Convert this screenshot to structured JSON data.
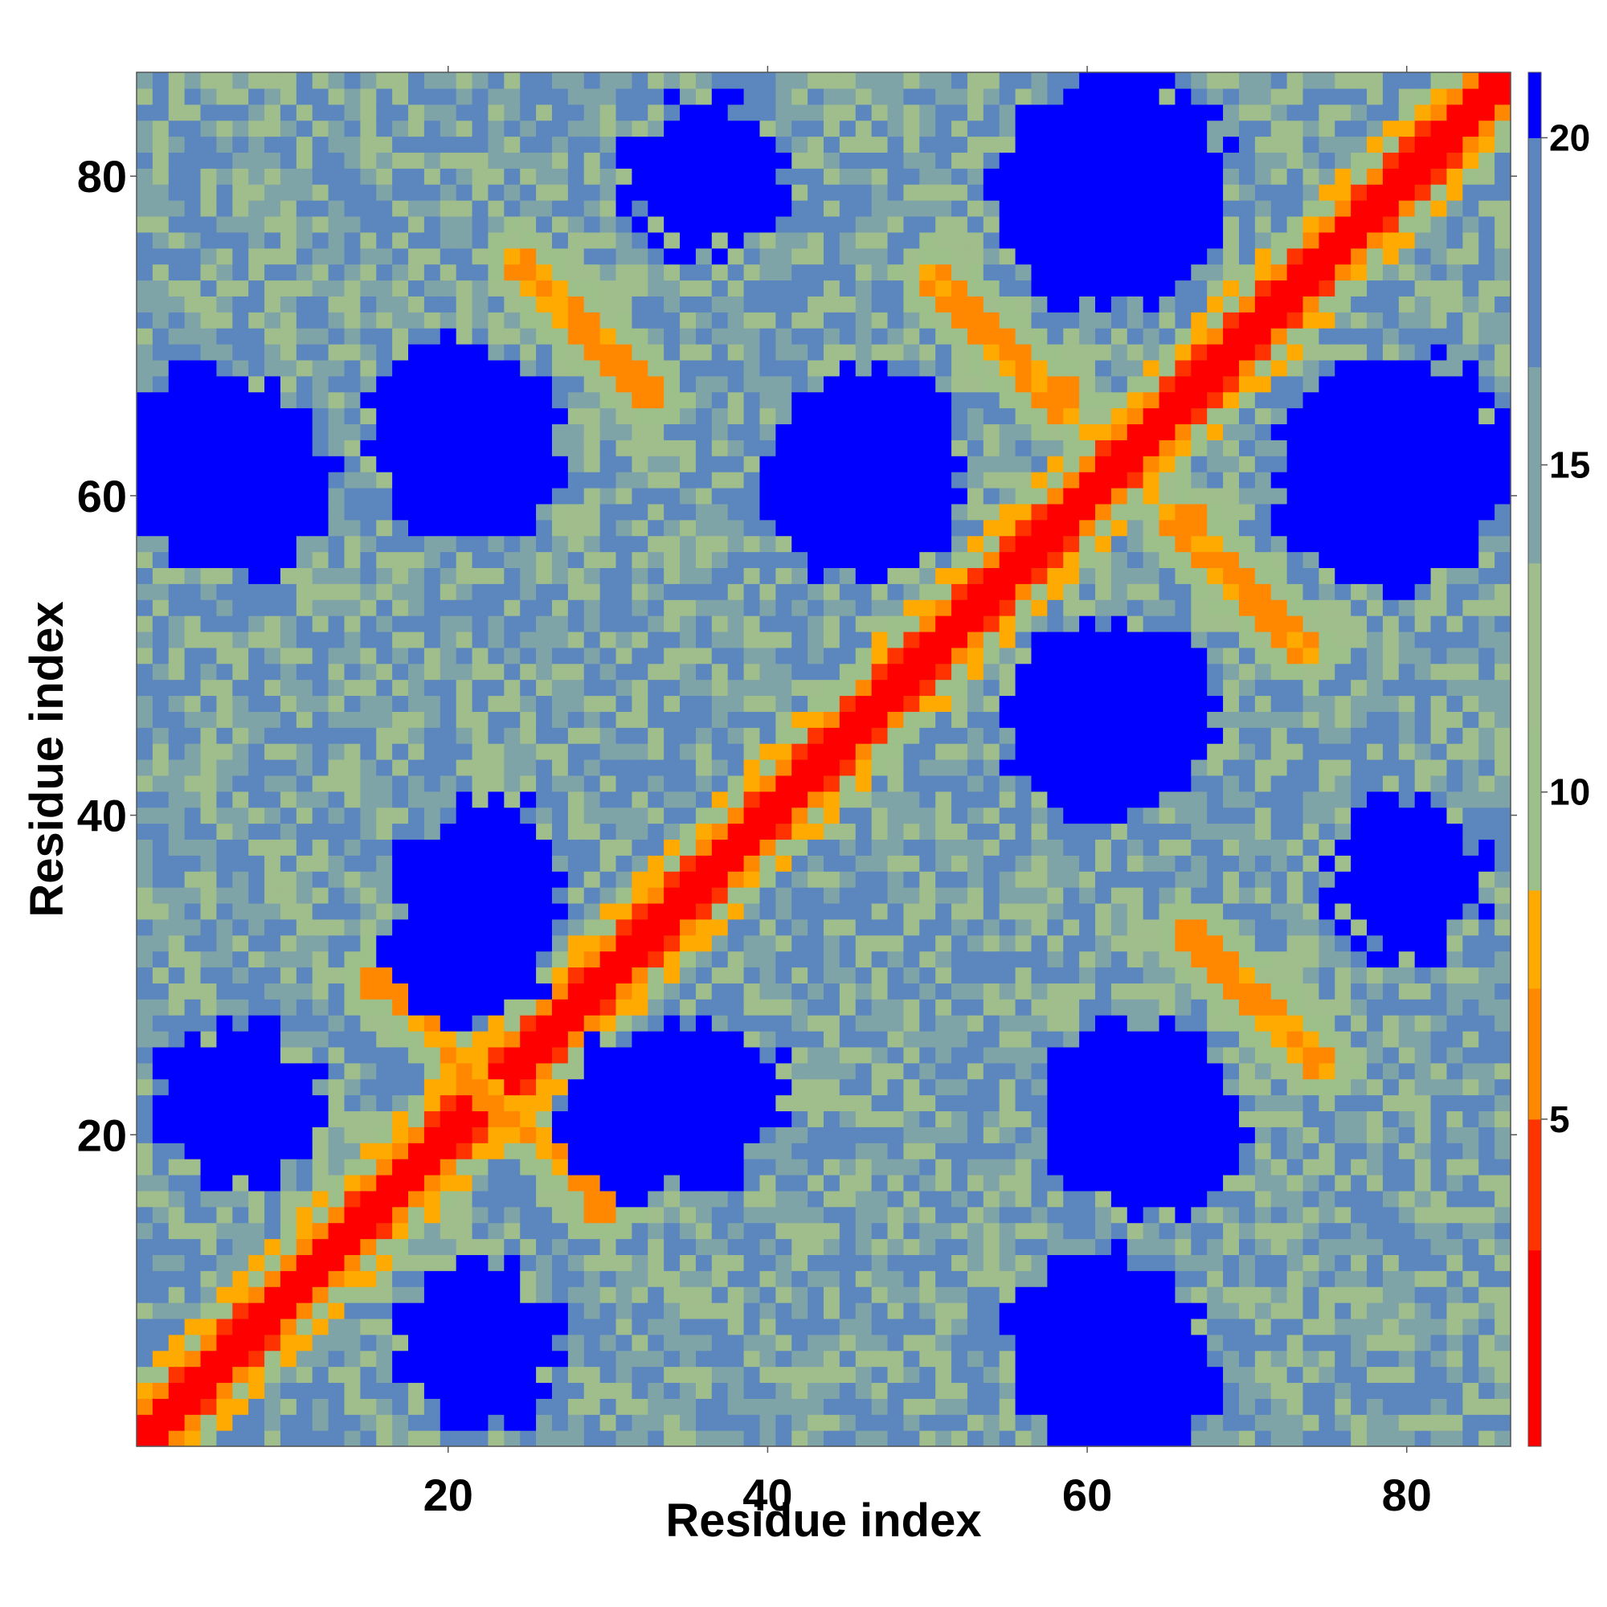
{
  "chart_data": {
    "type": "heatmap",
    "title": "",
    "xlabel": "Residue index",
    "ylabel": "Residue index",
    "xlim": [
      1,
      86
    ],
    "ylim": [
      1,
      86
    ],
    "x_ticks": [
      20,
      40,
      60,
      80
    ],
    "y_ticks": [
      20,
      40,
      60,
      80
    ],
    "matrix_size": 86,
    "matrix_symmetric": true,
    "colorbar": {
      "range": [
        0,
        21
      ],
      "ticks": [
        5,
        10,
        15,
        20
      ],
      "colors": [
        {
          "from": 0,
          "to": 3,
          "color": "#ff0000"
        },
        {
          "from": 3,
          "to": 5,
          "color": "#ff3300"
        },
        {
          "from": 5,
          "to": 7,
          "color": "#ff8800"
        },
        {
          "from": 7,
          "to": 8.5,
          "color": "#ffaa00"
        },
        {
          "from": 8.5,
          "to": 11,
          "color": "#9dbf8a"
        },
        {
          "from": 11,
          "to": 13.5,
          "color": "#a0bd8c"
        },
        {
          "from": 13.5,
          "to": 16.5,
          "color": "#7fa4a8"
        },
        {
          "from": 16.5,
          "to": 20,
          "color": "#5b86be"
        },
        {
          "from": 20,
          "to": 21,
          "color": "#0000ff"
        }
      ]
    },
    "features": [
      {
        "kind": "diagonal",
        "description": "main diagonal i=j",
        "value": 2
      },
      {
        "kind": "helix-near-diagonal",
        "offset": 2,
        "range": [
          1,
          86
        ],
        "value": 6
      },
      {
        "kind": "antidiagonal-contact",
        "from": [
          16,
          30
        ],
        "to": [
          23,
          22
        ],
        "value": 6
      },
      {
        "kind": "antidiagonal-contact",
        "from": [
          24,
          22
        ],
        "to": [
          30,
          15
        ],
        "value": 6
      },
      {
        "kind": "antidiagonal-contact",
        "from": [
          25,
          74
        ],
        "to": [
          33,
          66
        ],
        "value": 6
      },
      {
        "kind": "antidiagonal-contact",
        "from": [
          50,
          74
        ],
        "to": [
          59,
          66
        ],
        "value": 6
      },
      {
        "kind": "antidiagonal-contact",
        "from": [
          65,
          59
        ],
        "to": [
          73,
          51
        ],
        "value": 6
      },
      {
        "kind": "antidiagonal-contact",
        "from": [
          67,
          32
        ],
        "to": [
          75,
          24
        ],
        "value": 6
      },
      {
        "kind": "far-blob",
        "center": [
          7,
          61
        ],
        "radius": 6,
        "value": 21
      },
      {
        "kind": "far-blob",
        "center": [
          22,
          62
        ],
        "radius": 5,
        "value": 21
      },
      {
        "kind": "far-blob",
        "center": [
          46,
          61
        ],
        "radius": 6,
        "value": 21
      },
      {
        "kind": "far-blob",
        "center": [
          62,
          79
        ],
        "radius": 7,
        "value": 21
      },
      {
        "kind": "far-blob",
        "center": [
          79,
          61
        ],
        "radius": 7,
        "value": 21
      },
      {
        "kind": "far-blob",
        "center": [
          62,
          46
        ],
        "radius": 6,
        "value": 21
      },
      {
        "kind": "far-blob",
        "center": [
          22,
          36
        ],
        "radius": 5,
        "value": 21
      },
      {
        "kind": "far-blob",
        "center": [
          32,
          21
        ],
        "radius": 5,
        "value": 21
      },
      {
        "kind": "far-blob",
        "center": [
          64,
          21
        ],
        "radius": 6,
        "value": 21
      },
      {
        "kind": "far-blob",
        "center": [
          62,
          5
        ],
        "radius": 6,
        "value": 21
      },
      {
        "kind": "far-blob",
        "center": [
          7,
          22
        ],
        "radius": 5,
        "value": 21
      },
      {
        "kind": "far-blob",
        "center": [
          80,
          36
        ],
        "radius": 5,
        "value": 21
      }
    ]
  }
}
